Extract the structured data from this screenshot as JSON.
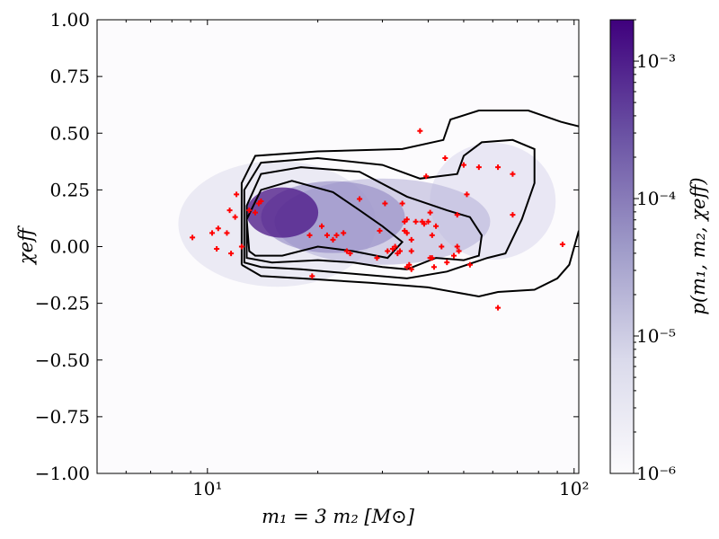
{
  "chart_data": {
    "type": "heatmap",
    "x_scale": "log",
    "xlim": [
      5,
      103
    ],
    "ylim": [
      -1.0,
      1.0
    ],
    "xlabel": "m₁ = 3 m₂ [M⊙]",
    "ylabel": "χeff",
    "x_ticks": [
      {
        "value": 10,
        "label": "10¹"
      },
      {
        "value": 100,
        "label": "10²"
      }
    ],
    "y_ticks": [
      {
        "value": 1.0,
        "label": "1.00"
      },
      {
        "value": 0.75,
        "label": "0.75"
      },
      {
        "value": 0.5,
        "label": "0.50"
      },
      {
        "value": 0.25,
        "label": "0.25"
      },
      {
        "value": 0.0,
        "label": "0.00"
      },
      {
        "value": -0.25,
        "label": "−0.25"
      },
      {
        "value": -0.5,
        "label": "−0.50"
      },
      {
        "value": -0.75,
        "label": "−0.75"
      },
      {
        "value": -1.0,
        "label": "−1.00"
      }
    ],
    "colorbar": {
      "label": "p(m₁, m₂, χeff)",
      "scale": "log",
      "range": [
        1e-06,
        0.002
      ],
      "colors": [
        "#fcfbfd",
        "#dadaeb",
        "#9e9ac8",
        "#6a51a3",
        "#3f007d"
      ],
      "ticks": [
        {
          "value": 1e-06,
          "label": "10⁻⁶"
        },
        {
          "value": 1e-05,
          "label": "10⁻⁵"
        },
        {
          "value": 0.0001,
          "label": "10⁻⁴"
        },
        {
          "value": 0.001,
          "label": "10⁻³"
        }
      ]
    },
    "density_peak": {
      "x": 16,
      "y": 0.15
    },
    "contours": [
      [
        [
          13,
          -0.02
        ],
        [
          12.8,
          0.12
        ],
        [
          14,
          0.25
        ],
        [
          17,
          0.29
        ],
        [
          22,
          0.24
        ],
        [
          26,
          0.16
        ],
        [
          30,
          0.09
        ],
        [
          34,
          0.02
        ],
        [
          31,
          -0.05
        ],
        [
          25,
          -0.02
        ],
        [
          20,
          0.0
        ],
        [
          16,
          -0.04
        ],
        [
          13.5,
          -0.04
        ]
      ],
      [
        [
          12.8,
          -0.05
        ],
        [
          12.8,
          0.18
        ],
        [
          14,
          0.32
        ],
        [
          18,
          0.35
        ],
        [
          26,
          0.33
        ],
        [
          35,
          0.22
        ],
        [
          45,
          0.16
        ],
        [
          52,
          0.13
        ],
        [
          56,
          0.05
        ],
        [
          55,
          -0.04
        ],
        [
          50,
          -0.06
        ],
        [
          42,
          -0.05
        ],
        [
          35,
          -0.1
        ],
        [
          30,
          -0.09
        ],
        [
          25,
          -0.07
        ],
        [
          20,
          -0.06
        ],
        [
          15,
          -0.07
        ]
      ],
      [
        [
          12.6,
          -0.07
        ],
        [
          12.6,
          0.25
        ],
        [
          14,
          0.37
        ],
        [
          20,
          0.39
        ],
        [
          30,
          0.36
        ],
        [
          38,
          0.3
        ],
        [
          48,
          0.32
        ],
        [
          50,
          0.4
        ],
        [
          56,
          0.46
        ],
        [
          68,
          0.47
        ],
        [
          78,
          0.43
        ],
        [
          78,
          0.28
        ],
        [
          72,
          0.12
        ],
        [
          65,
          -0.03
        ],
        [
          58,
          -0.05
        ],
        [
          45,
          -0.11
        ],
        [
          35,
          -0.14
        ],
        [
          25,
          -0.12
        ],
        [
          18,
          -0.1
        ],
        [
          14,
          -0.09
        ]
      ],
      [
        [
          12.4,
          -0.08
        ],
        [
          12.4,
          0.28
        ],
        [
          13.5,
          0.4
        ],
        [
          20,
          0.42
        ],
        [
          34,
          0.43
        ],
        [
          44,
          0.47
        ],
        [
          46,
          0.56
        ],
        [
          55,
          0.6
        ],
        [
          75,
          0.6
        ],
        [
          92,
          0.55
        ],
        [
          103,
          0.53
        ]
      ],
      [
        [
          103,
          0.07
        ],
        [
          97,
          -0.08
        ],
        [
          90,
          -0.14
        ],
        [
          78,
          -0.19
        ],
        [
          62,
          -0.2
        ],
        [
          55,
          -0.22
        ],
        [
          40,
          -0.18
        ],
        [
          28,
          -0.16
        ],
        [
          18,
          -0.14
        ],
        [
          14,
          -0.13
        ],
        [
          12.4,
          -0.08
        ]
      ]
    ],
    "points": [
      [
        9.1,
        0.04
      ],
      [
        10.3,
        0.06
      ],
      [
        10.6,
        -0.01
      ],
      [
        10.7,
        0.08
      ],
      [
        11.3,
        0.06
      ],
      [
        11.5,
        0.16
      ],
      [
        11.6,
        -0.03
      ],
      [
        11.9,
        0.13
      ],
      [
        12.0,
        0.23
      ],
      [
        12.4,
        0.0
      ],
      [
        13.0,
        0.16
      ],
      [
        13.5,
        0.15
      ],
      [
        13.8,
        0.19
      ],
      [
        14.0,
        0.2
      ],
      [
        19.0,
        0.05
      ],
      [
        19.3,
        -0.13
      ],
      [
        20.5,
        0.09
      ],
      [
        21.2,
        0.05
      ],
      [
        22.0,
        0.03
      ],
      [
        22.5,
        0.05
      ],
      [
        23.5,
        0.06
      ],
      [
        24.0,
        -0.02
      ],
      [
        24.5,
        -0.03
      ],
      [
        26.0,
        0.21
      ],
      [
        29.5,
        0.07
      ],
      [
        29.0,
        -0.05
      ],
      [
        30.5,
        0.19
      ],
      [
        31.0,
        -0.02
      ],
      [
        32.0,
        -0.01
      ],
      [
        32.5,
        0.0
      ],
      [
        33.0,
        -0.03
      ],
      [
        33.5,
        -0.02
      ],
      [
        34.0,
        0.19
      ],
      [
        34.5,
        0.11
      ],
      [
        35.0,
        0.12
      ],
      [
        34.5,
        0.07
      ],
      [
        35.0,
        0.06
      ],
      [
        35.5,
        -0.08
      ],
      [
        35.0,
        -0.09
      ],
      [
        36.0,
        -0.1
      ],
      [
        36.0,
        -0.02
      ],
      [
        36.0,
        0.03
      ],
      [
        37.0,
        0.11
      ],
      [
        38.0,
        0.51
      ],
      [
        38.5,
        0.11
      ],
      [
        39.0,
        0.1
      ],
      [
        39.5,
        0.31
      ],
      [
        40.0,
        0.11
      ],
      [
        40.5,
        0.15
      ],
      [
        40.5,
        -0.05
      ],
      [
        41.0,
        0.05
      ],
      [
        41.0,
        -0.05
      ],
      [
        41.5,
        -0.09
      ],
      [
        42.0,
        0.09
      ],
      [
        43.5,
        0.0
      ],
      [
        44.5,
        0.39
      ],
      [
        45.0,
        -0.07
      ],
      [
        47.0,
        -0.04
      ],
      [
        48.0,
        0.14
      ],
      [
        48.0,
        0.0
      ],
      [
        48.5,
        -0.02
      ],
      [
        50.0,
        0.36
      ],
      [
        51.0,
        0.23
      ],
      [
        52.0,
        -0.08
      ],
      [
        55.0,
        0.35
      ],
      [
        62.0,
        0.35
      ],
      [
        62.0,
        -0.27
      ],
      [
        68.0,
        0.32
      ],
      [
        68.0,
        0.14
      ],
      [
        93.0,
        0.01
      ]
    ]
  }
}
